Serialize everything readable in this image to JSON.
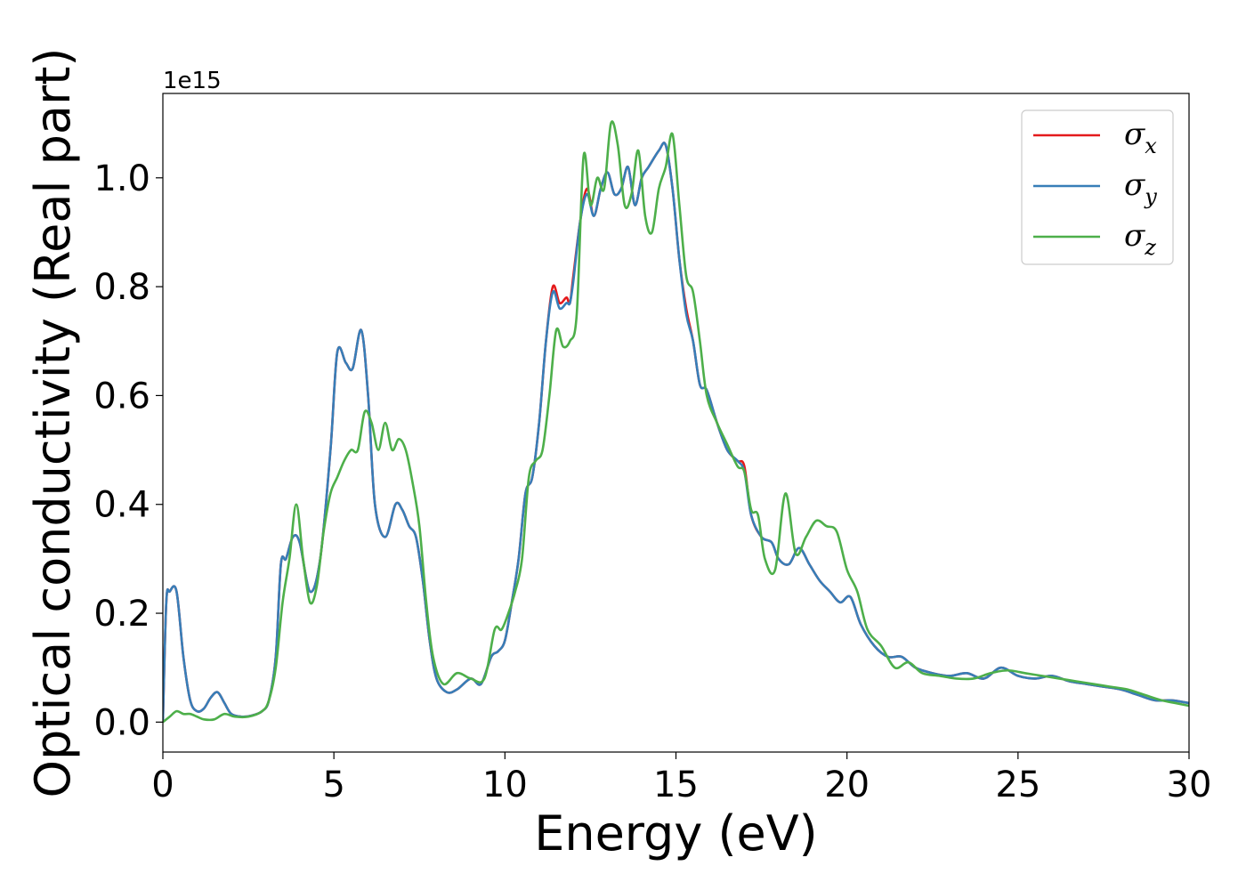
{
  "chart_data": {
    "type": "line",
    "xlabel": "Energy (eV)",
    "ylabel": "Optical conductivity (Real part)",
    "offset_text": "1e15",
    "xlim": [
      0,
      30
    ],
    "ylim": [
      -0.055,
      1.155
    ],
    "y_scale_factor": 1000000000000000.0,
    "x_ticks": [
      0,
      5,
      10,
      15,
      20,
      25,
      30
    ],
    "y_ticks": [
      0.0,
      0.2,
      0.4,
      0.6,
      0.8,
      1.0
    ],
    "y_tick_labels": [
      "0.0",
      "0.2",
      "0.4",
      "0.6",
      "0.8",
      "1.0"
    ],
    "grid": false,
    "legend_position": "top-right",
    "series": [
      {
        "name": "σx",
        "symbol": "σ",
        "subscript": "x",
        "color": "#e41a1c",
        "x": [
          0,
          0.1,
          0.2,
          0.4,
          0.6,
          0.8,
          1.0,
          1.2,
          1.4,
          1.6,
          1.8,
          2.0,
          2.3,
          2.6,
          2.9,
          3.1,
          3.3,
          3.45,
          3.6,
          3.8,
          4.0,
          4.3,
          4.6,
          4.9,
          5.1,
          5.35,
          5.55,
          5.8,
          6.0,
          6.2,
          6.5,
          6.8,
          7.0,
          7.2,
          7.4,
          7.6,
          7.8,
          8.0,
          8.3,
          8.6,
          9.0,
          9.3,
          9.6,
          9.8,
          10.0,
          10.2,
          10.4,
          10.6,
          10.8,
          11.0,
          11.2,
          11.4,
          11.6,
          11.8,
          11.9,
          12.0,
          12.2,
          12.4,
          12.6,
          12.8,
          13.0,
          13.2,
          13.4,
          13.6,
          13.8,
          14.0,
          14.2,
          14.5,
          14.7,
          14.9,
          15.1,
          15.3,
          15.5,
          15.7,
          15.9,
          16.2,
          16.5,
          16.8,
          17.0,
          17.2,
          17.5,
          17.8,
          18.0,
          18.3,
          18.6,
          18.9,
          19.2,
          19.5,
          19.8,
          20.1,
          20.4,
          20.8,
          21.2,
          21.6,
          22.0,
          22.5,
          23.0,
          23.5,
          24.0,
          24.5,
          25.0,
          25.5,
          26.0,
          26.5,
          27.0,
          27.5,
          28.0,
          28.5,
          29.0,
          29.5,
          30.0
        ],
        "y": [
          0.0,
          0.22,
          0.24,
          0.24,
          0.12,
          0.04,
          0.02,
          0.025,
          0.045,
          0.055,
          0.035,
          0.015,
          0.01,
          0.012,
          0.02,
          0.04,
          0.12,
          0.29,
          0.3,
          0.34,
          0.33,
          0.24,
          0.3,
          0.5,
          0.68,
          0.66,
          0.65,
          0.72,
          0.6,
          0.4,
          0.34,
          0.4,
          0.39,
          0.36,
          0.34,
          0.26,
          0.15,
          0.08,
          0.055,
          0.06,
          0.08,
          0.07,
          0.12,
          0.13,
          0.15,
          0.22,
          0.3,
          0.42,
          0.45,
          0.55,
          0.7,
          0.8,
          0.77,
          0.78,
          0.77,
          0.82,
          0.92,
          0.98,
          0.93,
          0.98,
          1.01,
          0.97,
          0.98,
          1.02,
          0.95,
          1.0,
          1.02,
          1.05,
          1.06,
          0.98,
          0.85,
          0.76,
          0.7,
          0.62,
          0.61,
          0.55,
          0.5,
          0.48,
          0.47,
          0.38,
          0.34,
          0.33,
          0.3,
          0.29,
          0.32,
          0.29,
          0.26,
          0.24,
          0.22,
          0.23,
          0.18,
          0.14,
          0.12,
          0.12,
          0.1,
          0.09,
          0.085,
          0.09,
          0.08,
          0.1,
          0.085,
          0.08,
          0.085,
          0.075,
          0.07,
          0.065,
          0.06,
          0.05,
          0.04,
          0.04,
          0.035
        ]
      },
      {
        "name": "σy",
        "symbol": "σ",
        "subscript": "y",
        "color": "#377eb8",
        "x": [
          0,
          0.1,
          0.2,
          0.4,
          0.6,
          0.8,
          1.0,
          1.2,
          1.4,
          1.6,
          1.8,
          2.0,
          2.3,
          2.6,
          2.9,
          3.1,
          3.3,
          3.45,
          3.6,
          3.8,
          4.0,
          4.3,
          4.6,
          4.9,
          5.1,
          5.35,
          5.55,
          5.8,
          6.0,
          6.2,
          6.5,
          6.8,
          7.0,
          7.2,
          7.4,
          7.6,
          7.8,
          8.0,
          8.3,
          8.6,
          9.0,
          9.3,
          9.6,
          9.8,
          10.0,
          10.2,
          10.4,
          10.6,
          10.8,
          11.0,
          11.2,
          11.4,
          11.6,
          11.8,
          11.9,
          12.0,
          12.2,
          12.4,
          12.6,
          12.8,
          13.0,
          13.2,
          13.4,
          13.6,
          13.8,
          14.0,
          14.2,
          14.5,
          14.7,
          14.9,
          15.1,
          15.3,
          15.5,
          15.7,
          15.9,
          16.2,
          16.5,
          16.8,
          17.0,
          17.2,
          17.5,
          17.8,
          18.0,
          18.3,
          18.6,
          18.9,
          19.2,
          19.5,
          19.8,
          20.1,
          20.4,
          20.8,
          21.2,
          21.6,
          22.0,
          22.5,
          23.0,
          23.5,
          24.0,
          24.5,
          25.0,
          25.5,
          26.0,
          26.5,
          27.0,
          27.5,
          28.0,
          28.5,
          29.0,
          29.5,
          30.0
        ],
        "y": [
          0.0,
          0.22,
          0.24,
          0.24,
          0.12,
          0.04,
          0.02,
          0.025,
          0.045,
          0.055,
          0.035,
          0.015,
          0.01,
          0.012,
          0.02,
          0.04,
          0.12,
          0.29,
          0.3,
          0.34,
          0.33,
          0.24,
          0.3,
          0.5,
          0.68,
          0.66,
          0.65,
          0.72,
          0.6,
          0.4,
          0.34,
          0.4,
          0.39,
          0.36,
          0.34,
          0.26,
          0.15,
          0.08,
          0.055,
          0.06,
          0.08,
          0.07,
          0.12,
          0.13,
          0.15,
          0.22,
          0.3,
          0.42,
          0.45,
          0.55,
          0.7,
          0.79,
          0.76,
          0.77,
          0.77,
          0.81,
          0.92,
          0.97,
          0.93,
          0.98,
          1.01,
          0.97,
          0.98,
          1.02,
          0.95,
          1.0,
          1.02,
          1.05,
          1.06,
          0.98,
          0.85,
          0.75,
          0.7,
          0.62,
          0.61,
          0.55,
          0.5,
          0.48,
          0.46,
          0.38,
          0.34,
          0.33,
          0.3,
          0.29,
          0.32,
          0.29,
          0.26,
          0.24,
          0.22,
          0.23,
          0.18,
          0.14,
          0.12,
          0.12,
          0.1,
          0.09,
          0.085,
          0.09,
          0.08,
          0.1,
          0.085,
          0.08,
          0.085,
          0.075,
          0.07,
          0.065,
          0.06,
          0.05,
          0.04,
          0.04,
          0.035
        ]
      },
      {
        "name": "σz",
        "symbol": "σ",
        "subscript": "z",
        "color": "#4daf4a",
        "x": [
          0,
          0.2,
          0.4,
          0.6,
          0.8,
          1.0,
          1.2,
          1.5,
          1.8,
          2.1,
          2.5,
          2.9,
          3.1,
          3.3,
          3.5,
          3.7,
          3.9,
          4.1,
          4.3,
          4.5,
          4.7,
          4.9,
          5.1,
          5.3,
          5.5,
          5.7,
          5.9,
          6.1,
          6.3,
          6.5,
          6.7,
          6.9,
          7.1,
          7.3,
          7.5,
          7.7,
          7.9,
          8.2,
          8.6,
          9.0,
          9.4,
          9.7,
          9.9,
          10.1,
          10.3,
          10.5,
          10.7,
          10.9,
          11.1,
          11.3,
          11.5,
          11.7,
          11.9,
          12.1,
          12.3,
          12.5,
          12.7,
          12.9,
          13.1,
          13.3,
          13.5,
          13.7,
          13.9,
          14.1,
          14.3,
          14.5,
          14.7,
          14.9,
          15.1,
          15.3,
          15.5,
          15.7,
          15.9,
          16.2,
          16.5,
          16.8,
          17.0,
          17.2,
          17.4,
          17.6,
          17.9,
          18.2,
          18.5,
          18.8,
          19.1,
          19.4,
          19.7,
          20.0,
          20.3,
          20.6,
          21.0,
          21.4,
          21.8,
          22.2,
          22.7,
          23.2,
          23.7,
          24.2,
          24.7,
          25.2,
          25.7,
          26.2,
          26.7,
          27.2,
          27.7,
          28.2,
          28.7,
          29.2,
          29.6,
          30.0
        ],
        "y": [
          0.0,
          0.01,
          0.02,
          0.015,
          0.015,
          0.01,
          0.005,
          0.005,
          0.015,
          0.01,
          0.01,
          0.02,
          0.04,
          0.1,
          0.22,
          0.3,
          0.4,
          0.3,
          0.22,
          0.25,
          0.35,
          0.42,
          0.45,
          0.48,
          0.5,
          0.5,
          0.57,
          0.55,
          0.5,
          0.55,
          0.5,
          0.52,
          0.5,
          0.44,
          0.36,
          0.22,
          0.12,
          0.07,
          0.09,
          0.08,
          0.08,
          0.17,
          0.17,
          0.2,
          0.24,
          0.3,
          0.45,
          0.48,
          0.5,
          0.6,
          0.72,
          0.69,
          0.7,
          0.75,
          1.04,
          0.95,
          1.0,
          0.98,
          1.1,
          1.06,
          0.95,
          0.97,
          1.05,
          0.93,
          0.9,
          0.98,
          1.02,
          1.08,
          0.95,
          0.82,
          0.79,
          0.7,
          0.6,
          0.55,
          0.51,
          0.47,
          0.46,
          0.39,
          0.38,
          0.3,
          0.28,
          0.42,
          0.31,
          0.34,
          0.37,
          0.36,
          0.35,
          0.28,
          0.24,
          0.17,
          0.14,
          0.1,
          0.11,
          0.09,
          0.085,
          0.08,
          0.08,
          0.09,
          0.095,
          0.09,
          0.085,
          0.08,
          0.075,
          0.07,
          0.065,
          0.06,
          0.05,
          0.04,
          0.035,
          0.03
        ]
      }
    ]
  }
}
